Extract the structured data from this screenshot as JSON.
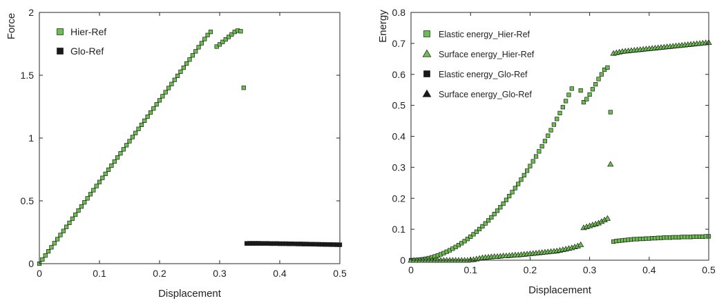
{
  "chart_data": [
    {
      "type": "scatter",
      "xlabel": "Displacement",
      "ylabel": "Force",
      "xlim": [
        0,
        0.5
      ],
      "ylim": [
        0,
        2
      ],
      "xticks": [
        "0",
        "0.1",
        "0.2",
        "0.3",
        "0.4",
        "0.5"
      ],
      "yticks": [
        "0",
        "0.5",
        "1",
        "1.5",
        "2"
      ],
      "legend_position": "top-left",
      "grid": false,
      "series": [
        {
          "name": "Hier-Ref",
          "marker": "square",
          "color": "#6bbf4e",
          "x": [
            0.0,
            0.005,
            0.01,
            0.015,
            0.02,
            0.025,
            0.03,
            0.035,
            0.04,
            0.045,
            0.05,
            0.055,
            0.06,
            0.065,
            0.07,
            0.075,
            0.08,
            0.085,
            0.09,
            0.095,
            0.1,
            0.105,
            0.11,
            0.115,
            0.12,
            0.125,
            0.13,
            0.135,
            0.14,
            0.145,
            0.15,
            0.155,
            0.16,
            0.165,
            0.17,
            0.175,
            0.18,
            0.185,
            0.19,
            0.195,
            0.2,
            0.205,
            0.21,
            0.215,
            0.22,
            0.225,
            0.23,
            0.235,
            0.24,
            0.245,
            0.25,
            0.255,
            0.26,
            0.265,
            0.27,
            0.275,
            0.28,
            0.285,
            0.29,
            0.295,
            0.3,
            0.305,
            0.31,
            0.315,
            0.32,
            0.325,
            0.33,
            0.335,
            0.34,
            0.345,
            0.35,
            0.355,
            0.36,
            0.365,
            0.37,
            0.375,
            0.38,
            0.385,
            0.39,
            0.395,
            0.4,
            0.405,
            0.41,
            0.415,
            0.42,
            0.425,
            0.43,
            0.435,
            0.44,
            0.445,
            0.45,
            0.455,
            0.46,
            0.465,
            0.47,
            0.475,
            0.48,
            0.485,
            0.49,
            0.495,
            0.5
          ],
          "y": [
            0.0,
            0.033,
            0.065,
            0.098,
            0.13,
            0.163,
            0.195,
            0.228,
            0.26,
            0.293,
            0.325,
            0.358,
            0.39,
            0.423,
            0.455,
            0.488,
            0.52,
            0.553,
            0.585,
            0.618,
            0.65,
            0.683,
            0.715,
            0.748,
            0.78,
            0.813,
            0.845,
            0.878,
            0.91,
            0.943,
            0.975,
            1.008,
            1.04,
            1.073,
            1.105,
            1.138,
            1.17,
            1.203,
            1.235,
            1.268,
            1.3,
            1.333,
            1.365,
            1.398,
            1.43,
            1.463,
            1.495,
            1.528,
            1.56,
            1.593,
            1.625,
            1.658,
            1.69,
            1.723,
            1.755,
            1.788,
            1.82,
            1.845,
            null,
            1.728,
            1.745,
            1.765,
            1.785,
            1.805,
            1.825,
            1.845,
            1.855,
            1.85,
            1.4,
            0.162,
            0.163,
            0.163,
            0.163,
            0.163,
            0.162,
            0.162,
            0.162,
            0.161,
            0.161,
            0.161,
            0.16,
            0.16,
            0.16,
            0.159,
            0.159,
            0.158,
            0.158,
            0.158,
            0.157,
            0.157,
            0.156,
            0.156,
            0.155,
            0.155,
            0.154,
            0.154,
            0.153,
            0.153,
            0.152,
            0.152,
            0.151
          ]
        },
        {
          "name": "Glo-Ref",
          "marker": "square",
          "color": "#1a1a1a",
          "x": [
            0.345,
            0.35,
            0.355,
            0.36,
            0.365,
            0.37,
            0.375,
            0.38,
            0.385,
            0.39,
            0.395,
            0.4,
            0.405,
            0.41,
            0.415,
            0.42,
            0.425,
            0.43,
            0.435,
            0.44,
            0.445,
            0.45,
            0.455,
            0.46,
            0.465,
            0.47,
            0.475,
            0.48,
            0.485,
            0.49,
            0.495,
            0.5
          ],
          "y": [
            0.16,
            0.16,
            0.16,
            0.16,
            0.16,
            0.16,
            0.16,
            0.16,
            0.159,
            0.159,
            0.159,
            0.158,
            0.158,
            0.158,
            0.157,
            0.157,
            0.157,
            0.156,
            0.156,
            0.155,
            0.155,
            0.155,
            0.154,
            0.154,
            0.153,
            0.153,
            0.152,
            0.152,
            0.151,
            0.151,
            0.15,
            0.15
          ]
        }
      ]
    },
    {
      "type": "scatter",
      "xlabel": "Displacement",
      "ylabel": "Energy",
      "xlim": [
        0,
        0.5
      ],
      "ylim": [
        0,
        0.8
      ],
      "xticks": [
        "0",
        "0.1",
        "0.2",
        "0.3",
        "0.4",
        "0.5"
      ],
      "yticks": [
        "0",
        "0.1",
        "0.2",
        "0.3",
        "0.4",
        "0.5",
        "0.6",
        "0.7",
        "0.8"
      ],
      "legend_position": "top-left",
      "grid": false,
      "series": [
        {
          "name": "Elastic energy_Hier-Ref",
          "marker": "square",
          "color": "#6bbf4e",
          "x": [
            0.0,
            0.005,
            0.01,
            0.015,
            0.02,
            0.025,
            0.03,
            0.035,
            0.04,
            0.045,
            0.05,
            0.055,
            0.06,
            0.065,
            0.07,
            0.075,
            0.08,
            0.085,
            0.09,
            0.095,
            0.1,
            0.105,
            0.11,
            0.115,
            0.12,
            0.125,
            0.13,
            0.135,
            0.14,
            0.145,
            0.15,
            0.155,
            0.16,
            0.165,
            0.17,
            0.175,
            0.18,
            0.185,
            0.19,
            0.195,
            0.2,
            0.205,
            0.21,
            0.215,
            0.22,
            0.225,
            0.23,
            0.235,
            0.24,
            0.245,
            0.25,
            0.255,
            0.26,
            0.265,
            0.27,
            0.275,
            0.28,
            0.285,
            0.29,
            0.295,
            0.3,
            0.305,
            0.31,
            0.315,
            0.32,
            0.325,
            0.33,
            0.335,
            0.34,
            0.345,
            0.35,
            0.355,
            0.36,
            0.365,
            0.37,
            0.375,
            0.38,
            0.385,
            0.39,
            0.395,
            0.4,
            0.405,
            0.41,
            0.415,
            0.42,
            0.425,
            0.43,
            0.435,
            0.44,
            0.445,
            0.45,
            0.455,
            0.46,
            0.465,
            0.47,
            0.475,
            0.48,
            0.485,
            0.49,
            0.495,
            0.5
          ],
          "y": [
            0.0,
            0.0002,
            0.0008,
            0.0017,
            0.003,
            0.0047,
            0.0068,
            0.0093,
            0.0122,
            0.0154,
            0.019,
            0.023,
            0.0274,
            0.0321,
            0.0372,
            0.0428,
            0.0487,
            0.0549,
            0.0616,
            0.0686,
            0.076,
            0.0838,
            0.092,
            0.1005,
            0.1094,
            0.1188,
            0.1285,
            0.1385,
            0.149,
            0.1598,
            0.171,
            0.1826,
            0.1946,
            0.207,
            0.2197,
            0.2328,
            0.2462,
            0.2601,
            0.2743,
            0.2889,
            0.304,
            0.3194,
            0.3351,
            0.3513,
            0.3678,
            0.3847,
            0.402,
            0.4197,
            0.4378,
            0.4562,
            0.475,
            0.4942,
            0.5138,
            0.5338,
            0.554,
            null,
            null,
            0.548,
            0.51,
            0.52,
            0.535,
            0.552,
            0.568,
            0.585,
            0.6,
            0.615,
            0.622,
            0.478,
            0.06,
            0.062,
            0.063,
            0.064,
            0.065,
            0.066,
            0.067,
            0.068,
            0.068,
            0.069,
            0.069,
            0.07,
            0.07,
            0.071,
            0.071,
            0.072,
            0.072,
            0.073,
            0.073,
            0.073,
            0.074,
            0.074,
            0.074,
            0.075,
            0.075,
            0.075,
            0.075,
            0.076,
            0.076,
            0.076,
            0.076,
            0.077,
            0.077
          ]
        },
        {
          "name": "Surface  energy_Hier-Ref",
          "marker": "triangle",
          "color": "#6bbf4e",
          "x": [
            0.0,
            0.005,
            0.01,
            0.015,
            0.02,
            0.025,
            0.03,
            0.035,
            0.04,
            0.045,
            0.05,
            0.055,
            0.06,
            0.065,
            0.07,
            0.075,
            0.08,
            0.085,
            0.09,
            0.095,
            0.1,
            0.105,
            0.11,
            0.115,
            0.12,
            0.125,
            0.13,
            0.135,
            0.14,
            0.145,
            0.15,
            0.155,
            0.16,
            0.165,
            0.17,
            0.175,
            0.18,
            0.185,
            0.19,
            0.195,
            0.2,
            0.205,
            0.21,
            0.215,
            0.22,
            0.225,
            0.23,
            0.235,
            0.24,
            0.245,
            0.25,
            0.255,
            0.26,
            0.265,
            0.27,
            0.275,
            0.28,
            0.285,
            0.29,
            0.295,
            0.3,
            0.305,
            0.31,
            0.315,
            0.32,
            0.325,
            0.33,
            0.335,
            0.34,
            0.345,
            0.35,
            0.355,
            0.36,
            0.365,
            0.37,
            0.375,
            0.38,
            0.385,
            0.39,
            0.395,
            0.4,
            0.405,
            0.41,
            0.415,
            0.42,
            0.425,
            0.43,
            0.435,
            0.44,
            0.445,
            0.45,
            0.455,
            0.46,
            0.465,
            0.47,
            0.475,
            0.48,
            0.485,
            0.49,
            0.495,
            0.5
          ],
          "y": [
            0.0,
            0.0,
            0.0,
            0.0,
            0.0,
            0.0,
            0.0,
            0.0,
            0.0,
            0.0,
            0.0,
            0.0,
            0.0,
            0.0,
            0.0,
            0.0,
            0.0,
            0.0,
            0.0,
            0.0,
            0.001,
            0.002,
            0.004,
            0.006,
            0.008,
            0.009,
            0.01,
            0.011,
            0.012,
            0.012,
            0.013,
            0.014,
            0.014,
            0.015,
            0.016,
            0.017,
            0.017,
            0.018,
            0.019,
            0.02,
            0.021,
            0.022,
            0.023,
            0.024,
            0.025,
            0.026,
            0.027,
            0.028,
            0.029,
            0.03,
            0.032,
            0.034,
            0.036,
            0.038,
            0.04,
            0.043,
            0.046,
            0.05,
            0.105,
            0.108,
            0.111,
            0.114,
            0.117,
            0.12,
            0.125,
            0.13,
            0.135,
            0.31,
            0.668,
            0.67,
            0.672,
            0.674,
            0.675,
            0.676,
            0.677,
            0.678,
            0.679,
            0.68,
            0.681,
            0.682,
            0.683,
            0.684,
            0.685,
            0.686,
            0.687,
            0.688,
            0.689,
            0.69,
            0.691,
            0.692,
            0.693,
            0.694,
            0.695,
            0.696,
            0.697,
            0.698,
            0.699,
            0.7,
            0.701,
            0.702,
            0.703
          ]
        },
        {
          "name": "Elastic energy_Glo-Ref",
          "marker": "square",
          "color": "#1a1a1a",
          "x": [],
          "y": []
        },
        {
          "name": "Surface  energy_Glo-Ref",
          "marker": "triangle",
          "color": "#1a1a1a",
          "x": [],
          "y": []
        }
      ]
    }
  ]
}
